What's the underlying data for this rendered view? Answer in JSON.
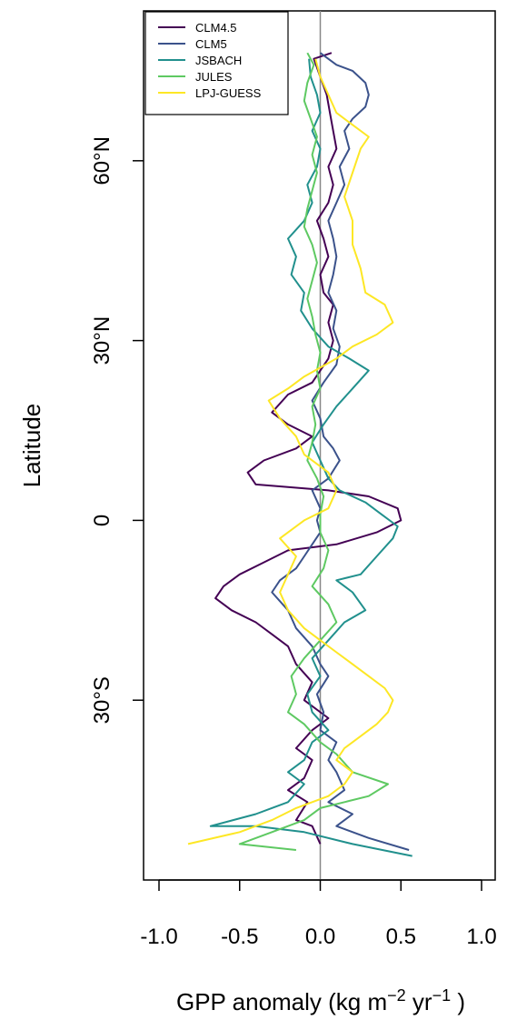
{
  "chart_data": {
    "type": "line",
    "xlabel": {
      "main": "GPP anomaly (kg m",
      "exp1": "−2",
      "mid": " yr",
      "exp2": "−1",
      "tail": " )"
    },
    "ylabel": "Latitude",
    "xlim": [
      -1.0,
      1.0
    ],
    "ylim": [
      -60,
      85
    ],
    "xticks": [
      -1.0,
      -0.5,
      0.0,
      0.5,
      1.0
    ],
    "xtick_labels": [
      "-1.0",
      "-0.5",
      "0.0",
      "0.5",
      "1.0"
    ],
    "yticks": [
      60,
      30,
      0,
      -30
    ],
    "ytick_labels": [
      "60°N",
      "30°N",
      "0",
      "30°S"
    ],
    "legend_position": "top-left",
    "reference_line_x": 0.0,
    "series": [
      {
        "name": "CLM4.5",
        "color": "#440154",
        "points": [
          [
            0.0,
            -54
          ],
          [
            -0.05,
            -51
          ],
          [
            -0.15,
            -50
          ],
          [
            -0.08,
            -47
          ],
          [
            -0.2,
            -45
          ],
          [
            -0.1,
            -43
          ],
          [
            -0.05,
            -40
          ],
          [
            -0.15,
            -38
          ],
          [
            -0.05,
            -35
          ],
          [
            0.05,
            -33
          ],
          [
            -0.1,
            -30
          ],
          [
            -0.05,
            -27
          ],
          [
            -0.15,
            -24
          ],
          [
            -0.2,
            -21
          ],
          [
            -0.3,
            -19
          ],
          [
            -0.4,
            -17
          ],
          [
            -0.55,
            -15
          ],
          [
            -0.65,
            -13
          ],
          [
            -0.6,
            -11
          ],
          [
            -0.5,
            -9
          ],
          [
            -0.35,
            -7
          ],
          [
            -0.2,
            -5
          ],
          [
            0.1,
            -4
          ],
          [
            0.35,
            -2
          ],
          [
            0.5,
            0
          ],
          [
            0.48,
            2
          ],
          [
            0.3,
            4
          ],
          [
            0.05,
            5
          ],
          [
            -0.4,
            6
          ],
          [
            -0.45,
            8
          ],
          [
            -0.35,
            10
          ],
          [
            -0.15,
            12
          ],
          [
            -0.05,
            14
          ],
          [
            -0.2,
            16
          ],
          [
            -0.3,
            18
          ],
          [
            -0.2,
            21
          ],
          [
            -0.05,
            23
          ],
          [
            0.0,
            25
          ],
          [
            0.05,
            27
          ],
          [
            0.08,
            30
          ],
          [
            0.05,
            33
          ],
          [
            0.08,
            36
          ],
          [
            0.02,
            38
          ],
          [
            0.0,
            41
          ],
          [
            0.05,
            44
          ],
          [
            0.02,
            47
          ],
          [
            -0.02,
            50
          ],
          [
            0.05,
            53
          ],
          [
            0.08,
            56
          ],
          [
            0.05,
            59
          ],
          [
            0.1,
            62
          ],
          [
            0.08,
            65
          ],
          [
            0.06,
            68
          ],
          [
            0.04,
            71
          ],
          [
            0.0,
            74
          ],
          [
            -0.04,
            77
          ],
          [
            0.07,
            78
          ]
        ]
      },
      {
        "name": "CLM5",
        "color": "#3b528b",
        "points": [
          [
            0.55,
            -55
          ],
          [
            0.3,
            -53
          ],
          [
            0.1,
            -51
          ],
          [
            0.2,
            -49
          ],
          [
            0.05,
            -47
          ],
          [
            0.15,
            -45
          ],
          [
            0.1,
            -42
          ],
          [
            0.05,
            -40
          ],
          [
            0.1,
            -37
          ],
          [
            0.0,
            -35
          ],
          [
            0.02,
            -32
          ],
          [
            -0.02,
            -29
          ],
          [
            0.05,
            -26
          ],
          [
            0.0,
            -24
          ],
          [
            -0.05,
            -21
          ],
          [
            -0.15,
            -18
          ],
          [
            -0.2,
            -15
          ],
          [
            -0.3,
            -12
          ],
          [
            -0.25,
            -10
          ],
          [
            -0.15,
            -8
          ],
          [
            -0.1,
            -6
          ],
          [
            -0.05,
            -4
          ],
          [
            0.0,
            -2
          ],
          [
            -0.02,
            0
          ],
          [
            0.0,
            2
          ],
          [
            -0.05,
            5
          ],
          [
            0.05,
            7
          ],
          [
            0.12,
            10
          ],
          [
            0.08,
            12
          ],
          [
            0.02,
            14
          ],
          [
            0.0,
            17
          ],
          [
            -0.05,
            20
          ],
          [
            0.02,
            23
          ],
          [
            0.1,
            26
          ],
          [
            0.12,
            29
          ],
          [
            0.08,
            32
          ],
          [
            0.1,
            35
          ],
          [
            0.05,
            38
          ],
          [
            0.08,
            41
          ],
          [
            0.1,
            44
          ],
          [
            0.08,
            47
          ],
          [
            0.05,
            50
          ],
          [
            0.1,
            53
          ],
          [
            0.15,
            56
          ],
          [
            0.12,
            59
          ],
          [
            0.18,
            62
          ],
          [
            0.15,
            65
          ],
          [
            0.2,
            67
          ],
          [
            0.28,
            69
          ],
          [
            0.3,
            71
          ],
          [
            0.28,
            73
          ],
          [
            0.2,
            75
          ],
          [
            0.1,
            76
          ],
          [
            0.0,
            78
          ]
        ]
      },
      {
        "name": "JSBACH",
        "color": "#21908d",
        "points": [
          [
            0.57,
            -56
          ],
          [
            0.2,
            -54
          ],
          [
            -0.1,
            -52
          ],
          [
            -0.4,
            -51
          ],
          [
            -0.68,
            -51
          ],
          [
            -0.4,
            -49
          ],
          [
            -0.2,
            -47
          ],
          [
            -0.1,
            -44
          ],
          [
            -0.2,
            -42
          ],
          [
            -0.1,
            -40
          ],
          [
            -0.05,
            -37
          ],
          [
            0.05,
            -35
          ],
          [
            -0.05,
            -32
          ],
          [
            -0.08,
            -29
          ],
          [
            0.0,
            -26
          ],
          [
            -0.05,
            -23
          ],
          [
            0.05,
            -20
          ],
          [
            0.15,
            -17
          ],
          [
            0.28,
            -15
          ],
          [
            0.2,
            -12
          ],
          [
            0.1,
            -10
          ],
          [
            0.25,
            -9
          ],
          [
            0.35,
            -6
          ],
          [
            0.45,
            -3
          ],
          [
            0.48,
            -1
          ],
          [
            0.38,
            1
          ],
          [
            0.28,
            3
          ],
          [
            0.12,
            5
          ],
          [
            0.05,
            7
          ],
          [
            0.0,
            10
          ],
          [
            -0.05,
            13
          ],
          [
            0.02,
            16
          ],
          [
            0.1,
            19
          ],
          [
            0.2,
            22
          ],
          [
            0.3,
            25
          ],
          [
            0.18,
            27
          ],
          [
            0.05,
            29
          ],
          [
            -0.05,
            32
          ],
          [
            -0.12,
            35
          ],
          [
            -0.1,
            38
          ],
          [
            -0.18,
            41
          ],
          [
            -0.15,
            44
          ],
          [
            -0.2,
            47
          ],
          [
            -0.1,
            50
          ],
          [
            -0.05,
            53
          ],
          [
            -0.08,
            56
          ],
          [
            -0.02,
            59
          ],
          [
            0.0,
            62
          ],
          [
            -0.05,
            65
          ],
          [
            0.0,
            68
          ],
          [
            -0.02,
            71
          ],
          [
            -0.06,
            74
          ],
          [
            -0.07,
            77
          ]
        ]
      },
      {
        "name": "JULES",
        "color": "#5ec962",
        "points": [
          [
            -0.15,
            -55
          ],
          [
            -0.5,
            -54
          ],
          [
            -0.3,
            -52
          ],
          [
            -0.1,
            -50
          ],
          [
            0.0,
            -48
          ],
          [
            0.3,
            -46
          ],
          [
            0.42,
            -44
          ],
          [
            0.2,
            -42
          ],
          [
            0.1,
            -39
          ],
          [
            0.0,
            -37
          ],
          [
            -0.1,
            -34
          ],
          [
            -0.2,
            -32
          ],
          [
            -0.15,
            -29
          ],
          [
            -0.18,
            -26
          ],
          [
            -0.1,
            -23
          ],
          [
            0.0,
            -20
          ],
          [
            0.1,
            -17
          ],
          [
            0.05,
            -14
          ],
          [
            -0.05,
            -11
          ],
          [
            0.02,
            -8
          ],
          [
            0.05,
            -5
          ],
          [
            0.0,
            -2
          ],
          [
            0.0,
            1
          ],
          [
            0.02,
            4
          ],
          [
            -0.02,
            7
          ],
          [
            -0.08,
            10
          ],
          [
            -0.05,
            13
          ],
          [
            -0.03,
            16
          ],
          [
            -0.05,
            19
          ],
          [
            0.0,
            22
          ],
          [
            -0.02,
            25
          ],
          [
            0.0,
            28
          ],
          [
            -0.03,
            31
          ],
          [
            -0.05,
            34
          ],
          [
            -0.08,
            37
          ],
          [
            -0.05,
            40
          ],
          [
            -0.02,
            43
          ],
          [
            -0.05,
            46
          ],
          [
            -0.1,
            49
          ],
          [
            -0.08,
            52
          ],
          [
            -0.05,
            55
          ],
          [
            -0.02,
            58
          ],
          [
            -0.05,
            61
          ],
          [
            -0.02,
            64
          ],
          [
            -0.06,
            67
          ],
          [
            -0.1,
            70
          ],
          [
            -0.08,
            73
          ],
          [
            -0.04,
            76
          ],
          [
            -0.08,
            78
          ]
        ]
      },
      {
        "name": "LPJ-GUESS",
        "color": "#fde725",
        "points": [
          [
            -0.82,
            -54
          ],
          [
            -0.5,
            -52
          ],
          [
            -0.3,
            -50
          ],
          [
            -0.15,
            -48
          ],
          [
            0.05,
            -46
          ],
          [
            0.15,
            -44
          ],
          [
            0.2,
            -42
          ],
          [
            0.1,
            -40
          ],
          [
            0.15,
            -38
          ],
          [
            0.25,
            -36
          ],
          [
            0.35,
            -34
          ],
          [
            0.42,
            -32
          ],
          [
            0.45,
            -30
          ],
          [
            0.4,
            -28
          ],
          [
            0.3,
            -26
          ],
          [
            0.2,
            -24
          ],
          [
            0.1,
            -22
          ],
          [
            0.0,
            -20
          ],
          [
            -0.1,
            -18
          ],
          [
            -0.2,
            -15
          ],
          [
            -0.25,
            -12
          ],
          [
            -0.2,
            -9
          ],
          [
            -0.15,
            -6
          ],
          [
            -0.25,
            -3
          ],
          [
            -0.1,
            0
          ],
          [
            0.05,
            2
          ],
          [
            0.1,
            5
          ],
          [
            0.05,
            8
          ],
          [
            -0.1,
            11
          ],
          [
            -0.15,
            14
          ],
          [
            -0.25,
            17
          ],
          [
            -0.32,
            20
          ],
          [
            -0.2,
            22
          ],
          [
            -0.1,
            24
          ],
          [
            0.1,
            27
          ],
          [
            0.2,
            29
          ],
          [
            0.35,
            31
          ],
          [
            0.45,
            33
          ],
          [
            0.4,
            36
          ],
          [
            0.28,
            38
          ],
          [
            0.25,
            42
          ],
          [
            0.2,
            46
          ],
          [
            0.2,
            50
          ],
          [
            0.15,
            54
          ],
          [
            0.2,
            58
          ],
          [
            0.25,
            62
          ],
          [
            0.3,
            64
          ],
          [
            0.2,
            66
          ],
          [
            0.1,
            68
          ],
          [
            0.05,
            71
          ],
          [
            0.0,
            74
          ],
          [
            -0.03,
            77
          ]
        ]
      }
    ]
  }
}
